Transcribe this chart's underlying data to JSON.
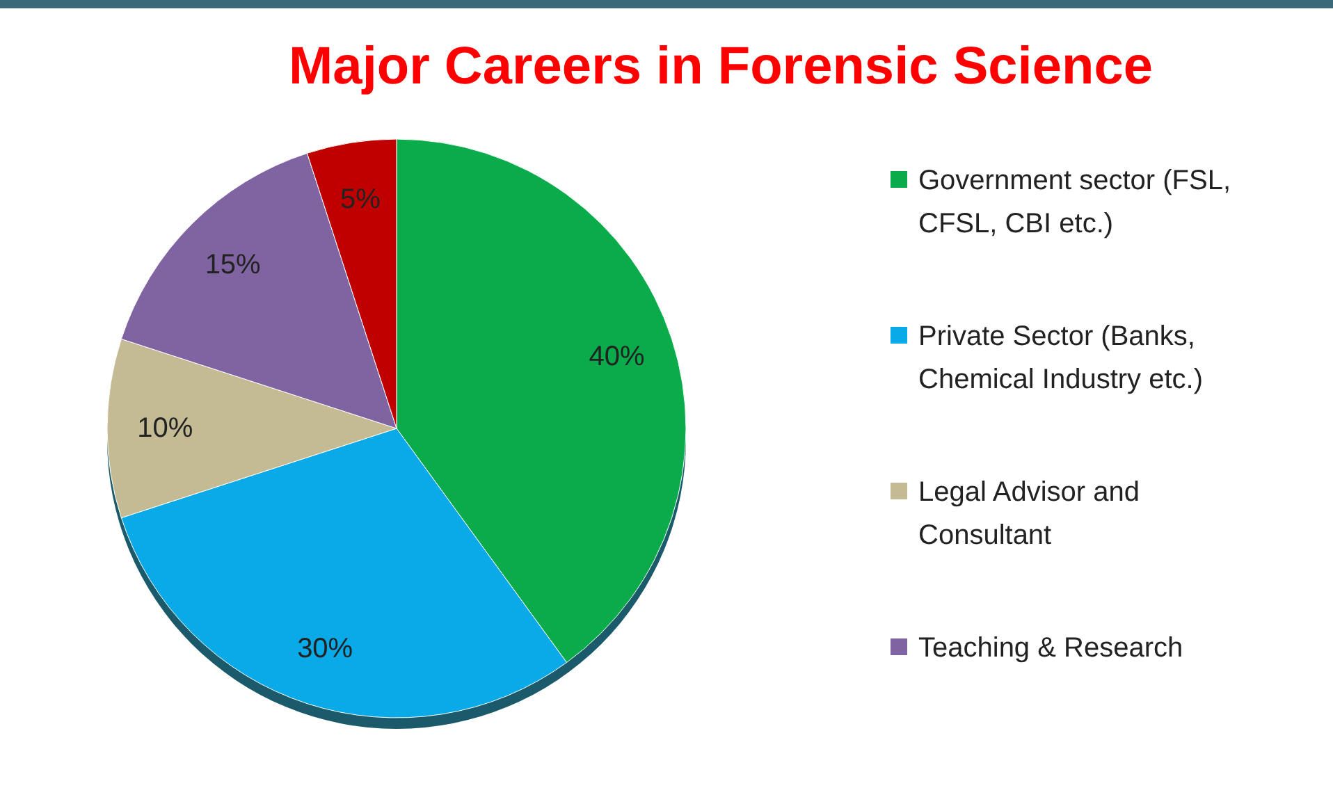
{
  "chart_data": {
    "type": "pie",
    "title": "Major Careers in Forensic Science",
    "categories": [
      "Government sector (FSL, CFSL, CBI etc.)",
      "Private Sector (Banks, Chemical Industry etc.)",
      "Legal Advisor and Consultant",
      "Teaching & Research",
      null
    ],
    "values": [
      40,
      30,
      10,
      15,
      5
    ],
    "value_labels": [
      "40%",
      "30%",
      "10%",
      "15%",
      "5%"
    ],
    "colors": [
      "#0aab4b",
      "#0aa9e8",
      "#c4bb95",
      "#8064a2",
      "#c00000"
    ],
    "legend": "right"
  }
}
